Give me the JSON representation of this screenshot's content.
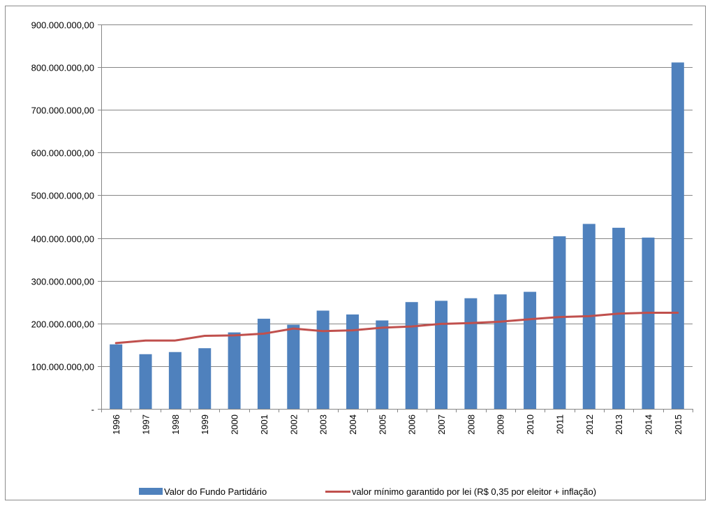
{
  "chart_data": {
    "type": "bar",
    "categories": [
      "1996",
      "1997",
      "1998",
      "1999",
      "2000",
      "2001",
      "2002",
      "2003",
      "2004",
      "2005",
      "2006",
      "2007",
      "2008",
      "2009",
      "2010",
      "2011",
      "2012",
      "2013",
      "2014",
      "2015"
    ],
    "series": [
      {
        "name": "Valor do Fundo Partidário",
        "type": "bar",
        "color": "#4f81bd",
        "values": [
          151000000,
          128000000,
          133000000,
          142000000,
          179000000,
          211000000,
          197000000,
          230000000,
          221000000,
          207000000,
          250000000,
          253000000,
          259000000,
          268000000,
          274000000,
          404000000,
          433000000,
          424000000,
          401000000,
          811000000
        ]
      },
      {
        "name": "valor mínimo garantido por lei (R$ 0,35 por eleitor + inflação)",
        "type": "line",
        "color": "#c0504d",
        "values": [
          154000000,
          160000000,
          160000000,
          171000000,
          172000000,
          176000000,
          188000000,
          182000000,
          184000000,
          190000000,
          193000000,
          199000000,
          201000000,
          204000000,
          210000000,
          215000000,
          217000000,
          223000000,
          225000000,
          225000000
        ]
      }
    ],
    "ylim": [
      0,
      900000000
    ],
    "y_ticks": [
      {
        "value": 0,
        "label": "-"
      },
      {
        "value": 100000000,
        "label": "100.000.000,00"
      },
      {
        "value": 200000000,
        "label": "200.000.000,00"
      },
      {
        "value": 300000000,
        "label": "300.000.000,00"
      },
      {
        "value": 400000000,
        "label": "400.000.000,00"
      },
      {
        "value": 500000000,
        "label": "500.000.000,00"
      },
      {
        "value": 600000000,
        "label": "600.000.000,00"
      },
      {
        "value": 700000000,
        "label": "700.000.000,00"
      },
      {
        "value": 800000000,
        "label": "800.000.000,00"
      },
      {
        "value": 900000000,
        "label": "900.000.000,00"
      }
    ],
    "grid": true,
    "legend_position": "bottom",
    "title": "",
    "xlabel": "",
    "ylabel": ""
  },
  "colors": {
    "grid": "#868686",
    "axis": "#868686"
  }
}
